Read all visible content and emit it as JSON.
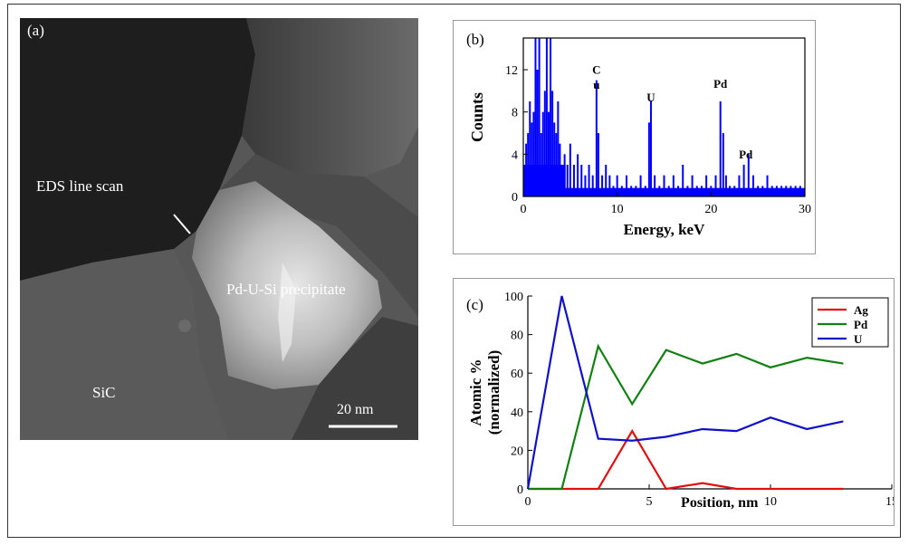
{
  "panel_a": {
    "label": "(a)",
    "annotations": [
      "EDS line scan",
      "Pd-U-Si precipitate",
      "SiC"
    ],
    "scalebar_label": "20 nm"
  },
  "chart_data": [
    {
      "type": "bar",
      "panel_label": "(b)",
      "xlabel": "Energy, keV",
      "ylabel": "Counts",
      "xlim": [
        0,
        30
      ],
      "ylim": [
        0,
        15
      ],
      "xticks": [
        0,
        10,
        20,
        30
      ],
      "yticks": [
        0,
        4,
        8,
        12
      ],
      "series_color": "#0000ff",
      "peak_labels": [
        {
          "text": "C",
          "x": 7.8,
          "y": 11.6
        },
        {
          "text": "u",
          "x": 7.8,
          "y": 10.2
        },
        {
          "text": "U",
          "x": 13.6,
          "y": 9.0
        },
        {
          "text": "Pd",
          "x": 21.0,
          "y": 10.3
        },
        {
          "text": "Pd",
          "x": 23.7,
          "y": 3.6
        }
      ],
      "x": [
        0.3,
        0.5,
        0.7,
        0.9,
        1.1,
        1.3,
        1.5,
        1.7,
        1.9,
        2.1,
        2.3,
        2.5,
        2.7,
        2.9,
        3.1,
        3.3,
        3.5,
        3.7,
        3.9,
        4.1,
        4.4,
        4.7,
        5.0,
        5.4,
        5.8,
        6.2,
        6.6,
        7.0,
        7.4,
        7.8,
        8.0,
        8.4,
        8.8,
        9.2,
        9.6,
        10.0,
        10.5,
        11.0,
        11.5,
        12.0,
        12.5,
        13.0,
        13.4,
        13.6,
        14.0,
        14.5,
        15.0,
        15.5,
        16.0,
        16.5,
        17.0,
        17.5,
        18.0,
        18.5,
        19.0,
        19.5,
        20.0,
        20.5,
        21.0,
        21.3,
        21.6,
        22.0,
        22.5,
        23.0,
        23.5,
        24.0,
        24.5,
        25.0,
        25.5,
        26.0,
        26.5,
        27.0,
        27.5,
        28.0,
        28.5,
        29.0,
        29.5
      ],
      "values": [
        5,
        6,
        9,
        7,
        8,
        15,
        12,
        15,
        6,
        8,
        10,
        15,
        8,
        15,
        10,
        7,
        6,
        9,
        5,
        3,
        4,
        3,
        5,
        3,
        4,
        3,
        2,
        3,
        2,
        11,
        6,
        2,
        3,
        2,
        1,
        2,
        1,
        2,
        1,
        1,
        2,
        1,
        7,
        9,
        2,
        1,
        2,
        1,
        2,
        1,
        3,
        1,
        2,
        1,
        1,
        2,
        1,
        2,
        9,
        6,
        2,
        1,
        1,
        2,
        3,
        4,
        2,
        1,
        1,
        2,
        1,
        1,
        1,
        1,
        1,
        1,
        1
      ]
    },
    {
      "type": "line",
      "panel_label": "(c)",
      "xlabel": "Position, nm",
      "ylabel": "Atomic %",
      "ylabel2": "(normalized)",
      "xlim": [
        0,
        15
      ],
      "ylim": [
        0,
        100
      ],
      "xticks": [
        0,
        5,
        10,
        15
      ],
      "yticks": [
        0,
        20,
        40,
        60,
        80,
        100
      ],
      "legend_position": "top-right",
      "x": [
        0,
        1.4,
        2.9,
        4.3,
        5.7,
        7.2,
        8.6,
        10.0,
        11.5,
        13.0
      ],
      "series": [
        {
          "name": "Ag",
          "color": "#e01010",
          "values": [
            0,
            0,
            0,
            30,
            0,
            3,
            0,
            0,
            0,
            0
          ]
        },
        {
          "name": "Pd",
          "color": "#108010",
          "values": [
            0,
            0,
            74,
            44,
            72,
            65,
            70,
            63,
            68,
            65
          ]
        },
        {
          "name": "U",
          "color": "#1010c8",
          "values": [
            0,
            100,
            26,
            25,
            27,
            31,
            30,
            37,
            31,
            35
          ]
        }
      ]
    }
  ]
}
